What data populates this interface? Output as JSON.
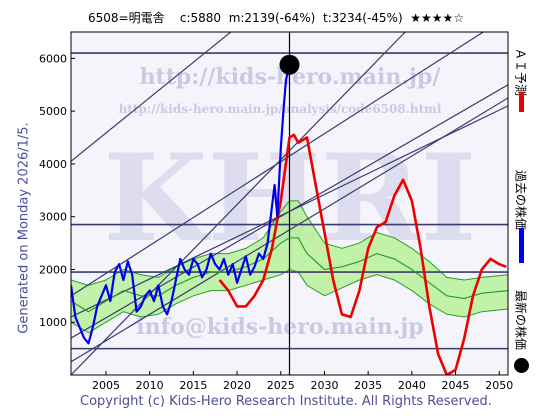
{
  "header": {
    "code": "6508=明電舎",
    "current": "c:5880",
    "medium": "m:2139(-64%)",
    "target": "t:3234(-45%)",
    "stars": "★★★★☆"
  },
  "side_label": "Generated on Monday 2026/1/5.",
  "footer": "Copyright (c) Kids-Hero Research Institute. All Rights Reserved.",
  "watermarks": {
    "url": "http://kids-hero.main.jp/",
    "analysis_url": "http://kids-hero.main.jp/analysis/code6508.html",
    "logo": "KHRI",
    "email": "info@kids-hero.main.jp"
  },
  "legend": {
    "ai_forecast": "ＡＩ予測",
    "past_price": "過去の株価",
    "latest_price": "最新の株価"
  },
  "colors": {
    "past_price": "#0000ee",
    "ai_forecast": "#ee0000",
    "band_line": "#2b9e2b",
    "band_fill": "#b9f09a",
    "highlight_fill": "#f8f4a0",
    "channel": "#383c70",
    "frame": "#000000"
  },
  "chart_data": {
    "type": "line",
    "xlim": [
      2001,
      2051
    ],
    "ylim": [
      0,
      6500
    ],
    "x_ticks": [
      2005,
      2010,
      2015,
      2020,
      2025,
      2030,
      2035,
      2040,
      2045,
      2050
    ],
    "y_ticks": [
      1000,
      2000,
      3000,
      4000,
      5000,
      6000
    ],
    "grid": false,
    "horizontal_levels": [
      500,
      1950,
      2850,
      6100
    ],
    "current_year": 2026,
    "latest_point": {
      "x": 2026,
      "y": 5880
    },
    "channel_lines": [
      {
        "x1": 2001,
        "y1": 0,
        "x2": 2051,
        "y2": 8500
      },
      {
        "x1": 2001,
        "y1": 250,
        "x2": 2051,
        "y2": 5250
      },
      {
        "x1": 2001,
        "y1": 700,
        "x2": 2051,
        "y2": 5500
      },
      {
        "x1": 2001,
        "y1": 1100,
        "x2": 2051,
        "y2": 5100
      },
      {
        "x1": 2001,
        "y1": 1500,
        "x2": 2051,
        "y2": 6800
      },
      {
        "x1": 2001,
        "y1": 4050,
        "x2": 2051,
        "y2": 10750
      }
    ],
    "series": [
      {
        "name": "過去の株価",
        "x": [
          2001,
          2001.5,
          2002,
          2002.5,
          2003,
          2003.5,
          2004,
          2004.5,
          2005,
          2005.5,
          2006,
          2006.5,
          2007,
          2007.5,
          2008,
          2008.5,
          2009,
          2009.5,
          2010,
          2010.5,
          2011,
          2011.5,
          2012,
          2012.5,
          2013,
          2013.5,
          2014,
          2014.5,
          2015,
          2015.5,
          2016,
          2016.5,
          2017,
          2017.5,
          2018,
          2018.5,
          2019,
          2019.5,
          2020,
          2020.5,
          2021,
          2021.5,
          2022,
          2022.5,
          2023,
          2023.5,
          2024,
          2024.3,
          2024.6,
          2025,
          2025.3,
          2025.6,
          2026
        ],
        "values": [
          1700,
          1100,
          900,
          700,
          600,
          900,
          1300,
          1500,
          1700,
          1400,
          1950,
          2100,
          1800,
          2150,
          1900,
          1200,
          1300,
          1500,
          1600,
          1400,
          1700,
          1300,
          1150,
          1400,
          1800,
          2200,
          2000,
          1900,
          2200,
          2100,
          1850,
          2000,
          2300,
          2100,
          2000,
          2200,
          1900,
          2100,
          1750,
          2000,
          2250,
          1900,
          2050,
          2300,
          2200,
          2500,
          3200,
          3600,
          3000,
          4300,
          5000,
          5600,
          5880
        ]
      },
      {
        "name": "ＡＩ予測",
        "x": [
          2018,
          2019,
          2020,
          2021,
          2022,
          2023,
          2024,
          2025,
          2026,
          2026.5,
          2027,
          2028,
          2029,
          2030,
          2031,
          2032,
          2033,
          2034,
          2035,
          2036,
          2037,
          2038,
          2039,
          2040,
          2041,
          2042,
          2043,
          2044,
          2045,
          2046,
          2047,
          2048,
          2049,
          2050,
          2050.8
        ],
        "values": [
          1800,
          1600,
          1300,
          1300,
          1500,
          1800,
          2400,
          3300,
          4500,
          4550,
          4400,
          4500,
          3600,
          2700,
          1800,
          1150,
          1100,
          1600,
          2400,
          2800,
          2900,
          3400,
          3700,
          3300,
          2400,
          1300,
          400,
          0,
          100,
          700,
          1500,
          2000,
          2200,
          2100,
          2050
        ]
      },
      {
        "name": "",
        "x": [
          2001,
          2003,
          2005,
          2007,
          2009,
          2011,
          2013,
          2015,
          2017,
          2019,
          2021,
          2023,
          2025,
          2026,
          2027,
          2028,
          2030,
          2032,
          2034,
          2036,
          2038,
          2040,
          2042,
          2044,
          2046,
          2048,
          2051
        ],
        "values": [
          1400,
          1200,
          1400,
          1600,
          1500,
          1500,
          1700,
          1850,
          1950,
          1950,
          2050,
          2200,
          2500,
          2600,
          2600,
          2300,
          2000,
          2050,
          2150,
          2300,
          2200,
          2000,
          1750,
          1500,
          1450,
          1550,
          1600
        ]
      }
    ],
    "band": {
      "x": [
        2001,
        2003,
        2005,
        2007,
        2009,
        2011,
        2013,
        2015,
        2017,
        2019,
        2021,
        2023,
        2025,
        2026,
        2027,
        2028,
        2030,
        2032,
        2034,
        2036,
        2038,
        2040,
        2042,
        2044,
        2046,
        2048,
        2051
      ],
      "upper": [
        1800,
        1700,
        1800,
        2000,
        1900,
        1850,
        2050,
        2200,
        2300,
        2300,
        2400,
        2600,
        3100,
        3300,
        3300,
        3000,
        2500,
        2400,
        2500,
        2700,
        2600,
        2400,
        2150,
        1850,
        1800,
        1850,
        1900
      ],
      "lower": [
        1000,
        800,
        1000,
        1200,
        1100,
        1150,
        1350,
        1500,
        1600,
        1600,
        1700,
        1800,
        1900,
        2000,
        1950,
        1700,
        1500,
        1650,
        1800,
        1900,
        1800,
        1600,
        1350,
        1150,
        1100,
        1200,
        1250
      ]
    }
  }
}
